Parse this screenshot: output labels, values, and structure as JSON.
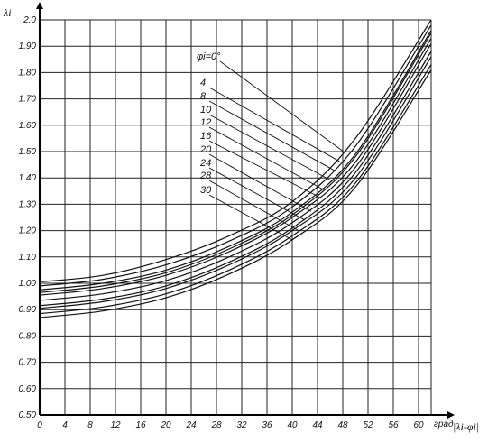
{
  "chart_data": {
    "type": "line",
    "ylabel": "λi",
    "xlabel": "|λi-φi|",
    "x_unit_label": "град",
    "xlim": [
      0,
      62
    ],
    "ylim": [
      0.5,
      2.0
    ],
    "x_ticks": [
      "0",
      "4",
      "8",
      "12",
      "16",
      "20",
      "24",
      "28",
      "32",
      "36",
      "40",
      "44",
      "48",
      "52",
      "56",
      "60"
    ],
    "y_ticks": [
      "0.50",
      "0.60",
      "0.70",
      "0.80",
      "0.90",
      "1.00",
      "1.10",
      "1.20",
      "1.30",
      "1.40",
      "1.50",
      "1.60",
      "1.70",
      "1.80",
      "1.90",
      "2.0"
    ],
    "grid": true,
    "legend_title_label": "φi=0°",
    "series": [
      {
        "name": "φi=0°",
        "x": [
          0,
          10,
          20,
          30,
          40,
          50,
          62
        ],
        "values": [
          1.005,
          1.03,
          1.09,
          1.18,
          1.31,
          1.55,
          2.0
        ]
      },
      {
        "name": "4",
        "x": [
          0,
          10,
          20,
          30,
          40,
          50,
          62
        ],
        "values": [
          0.99,
          1.015,
          1.07,
          1.16,
          1.29,
          1.52,
          1.98
        ]
      },
      {
        "name": "8",
        "x": [
          0,
          10,
          20,
          30,
          40,
          50,
          62
        ],
        "values": [
          0.975,
          1.0,
          1.05,
          1.14,
          1.27,
          1.49,
          1.96
        ]
      },
      {
        "name": "10",
        "x": [
          0,
          10,
          20,
          30,
          40,
          50,
          62
        ],
        "values": [
          0.965,
          0.99,
          1.04,
          1.13,
          1.26,
          1.48,
          1.95
        ]
      },
      {
        "name": "12",
        "x": [
          0,
          10,
          20,
          30,
          40,
          50,
          62
        ],
        "values": [
          0.955,
          0.98,
          1.03,
          1.12,
          1.25,
          1.46,
          1.93
        ]
      },
      {
        "name": "16",
        "x": [
          0,
          10,
          20,
          30,
          40,
          50,
          62
        ],
        "values": [
          0.935,
          0.96,
          1.01,
          1.1,
          1.23,
          1.44,
          1.91
        ]
      },
      {
        "name": "20",
        "x": [
          0,
          10,
          20,
          30,
          40,
          50,
          62
        ],
        "values": [
          0.915,
          0.94,
          0.99,
          1.08,
          1.21,
          1.42,
          1.88
        ]
      },
      {
        "name": "24",
        "x": [
          0,
          10,
          20,
          30,
          40,
          50,
          62
        ],
        "values": [
          0.905,
          0.93,
          0.98,
          1.07,
          1.2,
          1.4,
          1.86
        ]
      },
      {
        "name": "28",
        "x": [
          0,
          10,
          20,
          30,
          40,
          50,
          62
        ],
        "values": [
          0.885,
          0.91,
          0.96,
          1.05,
          1.18,
          1.38,
          1.83
        ]
      },
      {
        "name": "30",
        "x": [
          0,
          10,
          20,
          30,
          40,
          50,
          62
        ],
        "values": [
          0.87,
          0.895,
          0.945,
          1.035,
          1.165,
          1.365,
          1.81
        ]
      }
    ]
  }
}
